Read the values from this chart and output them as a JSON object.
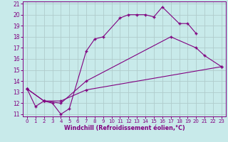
{
  "xlabel": "Windchill (Refroidissement éolien,°C)",
  "xlim": [
    -0.5,
    23.5
  ],
  "ylim": [
    10.8,
    21.2
  ],
  "yticks": [
    11,
    12,
    13,
    14,
    15,
    16,
    17,
    18,
    19,
    20,
    21
  ],
  "xticks": [
    0,
    1,
    2,
    3,
    4,
    5,
    6,
    7,
    8,
    9,
    10,
    11,
    12,
    13,
    14,
    15,
    16,
    17,
    18,
    19,
    20,
    21,
    22,
    23
  ],
  "line_color": "#800080",
  "bg_color": "#c8eaea",
  "grid_color": "#b0cccc",
  "line1_x": [
    0,
    1,
    2,
    3,
    4,
    5,
    7,
    8,
    9,
    11,
    12,
    13,
    14,
    15,
    16,
    18,
    19,
    20
  ],
  "line1_y": [
    13.3,
    11.7,
    12.2,
    12.0,
    11.0,
    11.5,
    16.7,
    17.8,
    18.0,
    19.7,
    20.0,
    20.0,
    20.0,
    19.8,
    20.7,
    19.2,
    19.2,
    18.3
  ],
  "line2_x": [
    0,
    2,
    4,
    7,
    17,
    20,
    21,
    23
  ],
  "line2_y": [
    13.3,
    12.2,
    12.0,
    14.0,
    18.0,
    17.0,
    16.3,
    15.3
  ],
  "line3_x": [
    0,
    2,
    4,
    7,
    23
  ],
  "line3_y": [
    13.3,
    12.2,
    12.2,
    13.2,
    15.3
  ]
}
